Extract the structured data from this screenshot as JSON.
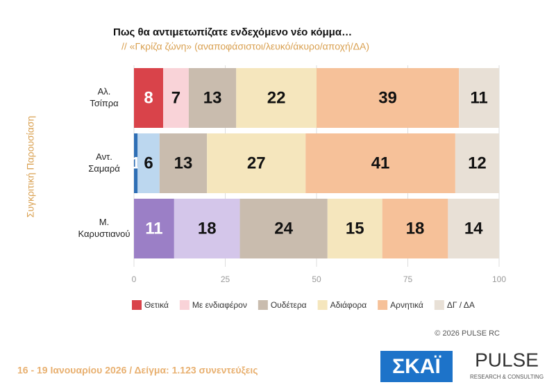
{
  "chart_data": {
    "type": "stacked_barh",
    "title": "Πως θα αντιμετωπίζατε ενδεχόμενο νέο κόμμα…",
    "subtitle": "// «Γκρίζα ζώνη» (αναποφάσιστοι/λευκό/άκυρο/αποχή/ΔΑ)",
    "y_label": "Συγκριτική Παρουσίαση",
    "categories": [
      [
        "Αλ.",
        "Τσίπρα"
      ],
      [
        "Αντ.",
        "Σαμαρά"
      ],
      [
        "Μ.",
        "Καρυστιανού"
      ]
    ],
    "series": [
      {
        "name": "Θετικά",
        "color": "#d9434a",
        "colors": [
          "#d9434a",
          "#2f6fb5",
          "#9b7fc6"
        ],
        "label_colors": [
          "#ffffff",
          "#ffffff",
          "#ffffff"
        ],
        "values": [
          8,
          1,
          11
        ]
      },
      {
        "name": "Με ενδιαφέρον",
        "color": "#f9d3d8",
        "colors": [
          "#f9d3d8",
          "#bcd7ef",
          "#d4c6ea"
        ],
        "label_colors": [
          "#111111",
          "#111111",
          "#111111"
        ],
        "values": [
          7,
          6,
          18
        ]
      },
      {
        "name": "Ουδέτερα",
        "color": "#c9bcae",
        "colors": [
          "#c9bcae",
          "#c9bcae",
          "#c9bcae"
        ],
        "label_colors": [
          "#111111",
          "#111111",
          "#111111"
        ],
        "values": [
          13,
          13,
          24
        ]
      },
      {
        "name": "Αδιάφορα",
        "color": "#f5e6bd",
        "colors": [
          "#f5e6bd",
          "#f5e6bd",
          "#f5e6bd"
        ],
        "label_colors": [
          "#111111",
          "#111111",
          "#111111"
        ],
        "values": [
          22,
          27,
          15
        ]
      },
      {
        "name": "Αρνητικά",
        "color": "#f6c199",
        "colors": [
          "#f6c199",
          "#f6c199",
          "#f6c199"
        ],
        "label_colors": [
          "#111111",
          "#111111",
          "#111111"
        ],
        "values": [
          39,
          41,
          18
        ]
      },
      {
        "name": "ΔΓ / ΔΑ",
        "color": "#e8e0d6",
        "colors": [
          "#e8e0d6",
          "#e8e0d6",
          "#e8e0d6"
        ],
        "label_colors": [
          "#111111",
          "#111111",
          "#111111"
        ],
        "values": [
          11,
          12,
          14
        ]
      }
    ],
    "xlim": [
      0,
      100
    ],
    "xticks": [
      0,
      25,
      50,
      75,
      100
    ],
    "grid": true,
    "copyright": "© 2026 PULSE RC",
    "footer": "16 - 19 Ιανουαρίου 2026  /  Δείγμα:  1.123 συνεντεύξεις",
    "logo_left": "ΣΚΑΪ",
    "logo_right": "PULSE",
    "logo_right_sub": "RESEARCH & CONSULTING"
  }
}
